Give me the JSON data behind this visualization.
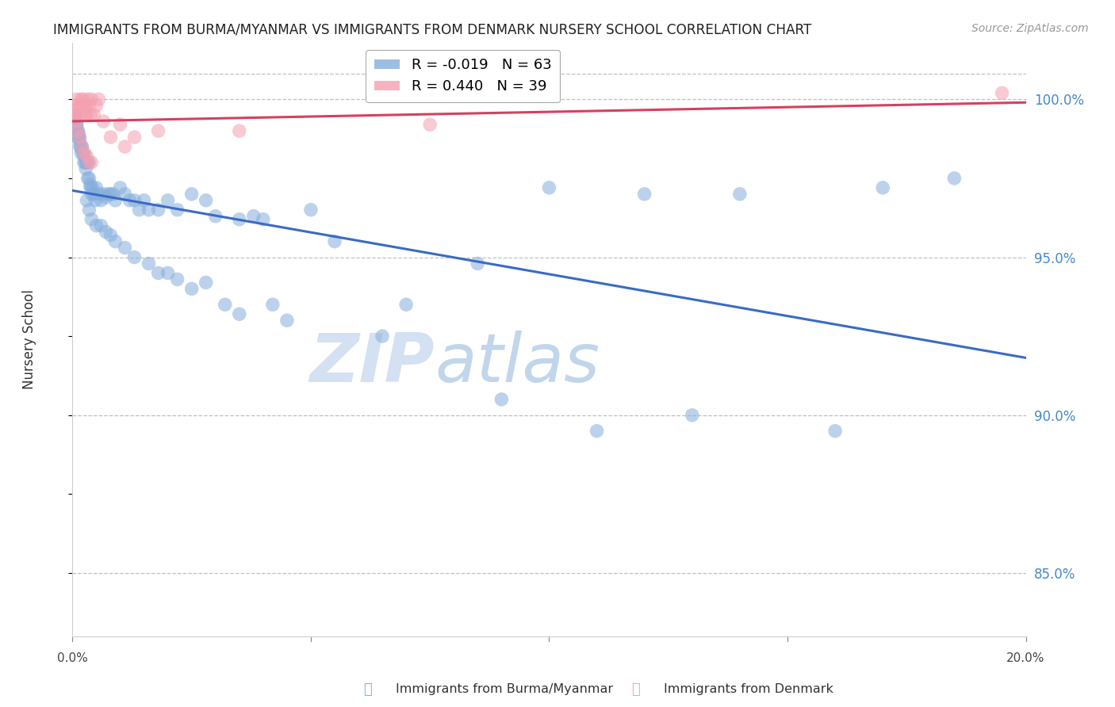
{
  "title": "IMMIGRANTS FROM BURMA/MYANMAR VS IMMIGRANTS FROM DENMARK NURSERY SCHOOL CORRELATION CHART",
  "source": "Source: ZipAtlas.com",
  "ylabel": "Nursery School",
  "watermark_zip": "ZIP",
  "watermark_atlas": "atlas",
  "blue_label": "Immigrants from Burma/Myanmar",
  "pink_label": "Immigrants from Denmark",
  "blue_R": -0.019,
  "blue_N": 63,
  "pink_R": 0.44,
  "pink_N": 39,
  "xlim": [
    0.0,
    20.0
  ],
  "ylim": [
    83.0,
    101.8
  ],
  "yticks": [
    85.0,
    90.0,
    95.0,
    100.0
  ],
  "top_dashed_y": 100.8,
  "blue_color": "#85AEDD",
  "pink_color": "#F4A0B0",
  "blue_line_color": "#3A6BC4",
  "pink_line_color": "#D64060",
  "grid_color": "#C0C0C0",
  "right_label_color": "#4488CC",
  "title_color": "#222222",
  "blue_x": [
    0.05,
    0.08,
    0.1,
    0.11,
    0.12,
    0.13,
    0.14,
    0.15,
    0.16,
    0.17,
    0.18,
    0.2,
    0.22,
    0.24,
    0.25,
    0.27,
    0.28,
    0.3,
    0.32,
    0.33,
    0.35,
    0.37,
    0.38,
    0.4,
    0.42,
    0.45,
    0.48,
    0.5,
    0.55,
    0.6,
    0.65,
    0.7,
    0.75,
    0.8,
    0.85,
    0.9,
    1.0,
    1.1,
    1.2,
    1.3,
    1.4,
    1.5,
    1.6,
    1.8,
    2.0,
    2.2,
    2.5,
    2.8,
    3.0,
    3.5,
    3.8,
    4.0,
    5.0,
    5.5,
    7.0,
    8.5,
    10.0,
    12.0,
    14.0,
    17.0,
    18.5,
    0.06,
    0.09
  ],
  "blue_y": [
    99.3,
    99.2,
    99.0,
    98.8,
    99.0,
    98.9,
    98.8,
    98.7,
    98.5,
    98.5,
    98.3,
    98.5,
    98.3,
    98.0,
    98.2,
    98.0,
    97.8,
    98.0,
    97.5,
    98.0,
    97.5,
    97.3,
    97.2,
    97.0,
    97.2,
    97.0,
    96.8,
    97.2,
    97.0,
    96.8,
    97.0,
    96.9,
    97.0,
    97.0,
    97.0,
    96.8,
    97.2,
    97.0,
    96.8,
    96.8,
    96.5,
    96.8,
    96.5,
    96.5,
    96.8,
    96.5,
    97.0,
    96.8,
    96.3,
    96.2,
    96.3,
    96.2,
    96.5,
    95.5,
    93.5,
    94.8,
    97.2,
    97.0,
    97.0,
    97.2,
    97.5,
    99.4,
    99.2
  ],
  "blue_x2": [
    0.3,
    0.35,
    0.4,
    0.5,
    0.6,
    0.7,
    0.8,
    0.9,
    1.1,
    1.3,
    1.6,
    1.8,
    2.0,
    2.2,
    2.5,
    2.8,
    3.2,
    3.5,
    4.2,
    4.5,
    6.5,
    9.0,
    11.0,
    13.0,
    16.0
  ],
  "blue_y2": [
    96.8,
    96.5,
    96.2,
    96.0,
    96.0,
    95.8,
    95.7,
    95.5,
    95.3,
    95.0,
    94.8,
    94.5,
    94.5,
    94.3,
    94.0,
    94.2,
    93.5,
    93.2,
    93.5,
    93.0,
    92.5,
    90.5,
    89.5,
    90.0,
    89.5
  ],
  "pink_x": [
    0.05,
    0.08,
    0.1,
    0.12,
    0.14,
    0.16,
    0.18,
    0.2,
    0.22,
    0.24,
    0.26,
    0.28,
    0.3,
    0.32,
    0.35,
    0.38,
    0.4,
    0.45,
    0.5,
    0.55,
    0.65,
    0.8,
    1.0,
    1.1,
    1.3,
    1.8,
    3.5,
    7.5,
    19.5
  ],
  "pink_y": [
    99.5,
    100.0,
    99.8,
    99.7,
    99.8,
    99.5,
    100.0,
    99.8,
    100.0,
    99.8,
    99.5,
    99.8,
    99.5,
    100.0,
    99.8,
    99.5,
    100.0,
    99.5,
    99.8,
    100.0,
    99.3,
    98.8,
    99.2,
    98.5,
    98.8,
    99.0,
    99.0,
    99.2,
    100.2
  ],
  "pink_x2": [
    0.05,
    0.08,
    0.1,
    0.15,
    0.2,
    0.25,
    0.3,
    0.35,
    0.4
  ],
  "pink_y2": [
    99.5,
    99.3,
    99.0,
    98.8,
    98.5,
    98.3,
    98.2,
    98.0,
    98.0
  ]
}
